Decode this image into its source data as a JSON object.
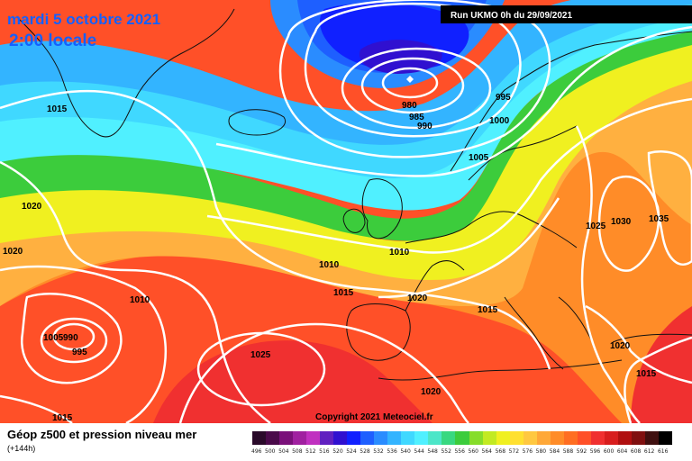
{
  "header": {
    "date": "mardi 5 octobre 2021",
    "time": "2:00 locale",
    "run": "Run UKMO 0h du 29/09/2021"
  },
  "footer": {
    "title": "Géop z500 et pression niveau mer",
    "subtitle": "(+144h)",
    "copyright": "Copyright 2021 Meteociel.fr"
  },
  "color_scale": {
    "labels": [
      "496",
      "500",
      "504",
      "508",
      "512",
      "516",
      "520",
      "524",
      "528",
      "532",
      "536",
      "540",
      "544",
      "548",
      "552",
      "556",
      "560",
      "564",
      "568",
      "572",
      "576",
      "580",
      "584",
      "588",
      "592",
      "596",
      "600",
      "604",
      "608",
      "612",
      "616"
    ],
    "colors": [
      "#2a0a2a",
      "#4a0a4a",
      "#7a107a",
      "#a020a0",
      "#c030c0",
      "#6020c0",
      "#3010d0",
      "#1020ff",
      "#1e5fff",
      "#2a8cff",
      "#33b4ff",
      "#40d8ff",
      "#50f0ff",
      "#4ce6c8",
      "#38d880",
      "#3ccc3c",
      "#86dd2a",
      "#c2ea22",
      "#f0f020",
      "#ffe030",
      "#ffc840",
      "#ffa838",
      "#ff8c28",
      "#ff6e22",
      "#ff5028",
      "#f03030",
      "#d81e1e",
      "#b01010",
      "#801010",
      "#401010",
      "#000000"
    ]
  },
  "isobar_labels": [
    "1015",
    "980",
    "985",
    "990",
    "995",
    "1000",
    "1005",
    "1020",
    "1020",
    "1010",
    "1010",
    "1015",
    "1020",
    "1025",
    "1030",
    "1035",
    "1015",
    "1010",
    "1005",
    "990",
    "995",
    "1025",
    "1020",
    "1015",
    "1020",
    "1015"
  ],
  "pressure_centers": [
    "980"
  ]
}
